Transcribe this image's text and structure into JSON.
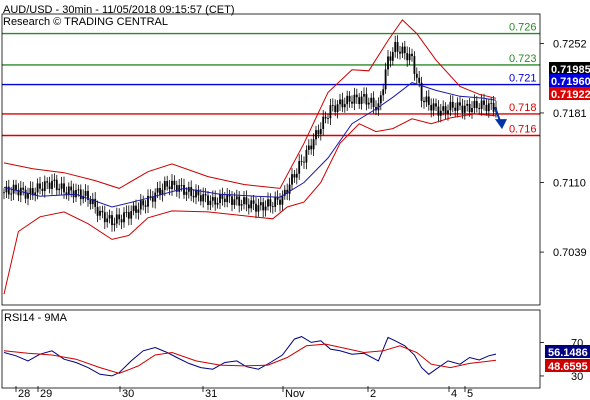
{
  "header": {
    "title": "AUD/USD - 30min - 11/05/2018 09:15:57 (CET)",
    "source": "Research © TRADING CENTRAL"
  },
  "colors": {
    "candle": "#000000",
    "bollinger": "#cc0000",
    "moving_average": "#1a1aa6",
    "support": "#dd0000",
    "resistance": "#2a8a2a",
    "pivot": "#0000dd",
    "rsi": "#000080",
    "rsi_ma": "#cc0000",
    "arrow": "#0033aa"
  },
  "chart_data": [
    {
      "type": "candlestick",
      "title": "AUD/USD - 30min - 11/05/2018 09:15:57 (CET)",
      "y_ticks": [
        "0.7252",
        "0.7181",
        "0.7110",
        "0.7039"
      ],
      "ylim": [
        0.6985,
        0.7282
      ],
      "x_ticks": [
        "28",
        "29",
        "30",
        "31",
        "Nov",
        "2",
        "4",
        "5"
      ],
      "levels": [
        {
          "label": "0.726",
          "value": 0.7262,
          "kind": "resistance"
        },
        {
          "label": "0.723",
          "value": 0.723,
          "kind": "resistance"
        },
        {
          "label": "0.721",
          "value": 0.721,
          "kind": "pivot"
        },
        {
          "label": "0.718",
          "value": 0.718,
          "kind": "support"
        },
        {
          "label": "0.716",
          "value": 0.7158,
          "kind": "support"
        }
      ],
      "price_tags": [
        {
          "label": "0.71985",
          "value": 0.71985,
          "color": "#000000"
        },
        {
          "label": "0.71960",
          "value": 0.7196,
          "color": "#0000dd"
        },
        {
          "label": "0.71922",
          "value": 0.71922,
          "color": "#dd0000"
        }
      ],
      "close_path": [
        [
          0,
          0.71
        ],
        [
          5,
          0.7103
        ],
        [
          10,
          0.7098
        ],
        [
          15,
          0.7105
        ],
        [
          20,
          0.711
        ],
        [
          25,
          0.7102
        ],
        [
          30,
          0.71
        ],
        [
          35,
          0.7095
        ],
        [
          40,
          0.7078
        ],
        [
          45,
          0.707
        ],
        [
          48,
          0.7073
        ],
        [
          53,
          0.708
        ],
        [
          58,
          0.7088
        ],
        [
          63,
          0.7098
        ],
        [
          68,
          0.7108
        ],
        [
          72,
          0.7106
        ],
        [
          77,
          0.71
        ],
        [
          82,
          0.7096
        ],
        [
          87,
          0.709
        ],
        [
          92,
          0.7095
        ],
        [
          97,
          0.7091
        ],
        [
          101,
          0.7089
        ],
        [
          106,
          0.7085
        ],
        [
          111,
          0.7088
        ],
        [
          116,
          0.7094
        ],
        [
          121,
          0.7118
        ],
        [
          126,
          0.714
        ],
        [
          131,
          0.7163
        ],
        [
          136,
          0.7185
        ],
        [
          140,
          0.719
        ],
        [
          145,
          0.7195
        ],
        [
          150,
          0.7196
        ],
        [
          156,
          0.7186
        ],
        [
          160,
          0.7235
        ],
        [
          163,
          0.7248
        ],
        [
          167,
          0.7242
        ],
        [
          170,
          0.7236
        ],
        [
          174,
          0.7197
        ],
        [
          177,
          0.719
        ],
        [
          182,
          0.7182
        ],
        [
          187,
          0.7188
        ],
        [
          193,
          0.7186
        ],
        [
          198,
          0.7189
        ],
        [
          202,
          0.7188
        ],
        [
          205,
          0.7187
        ]
      ],
      "bollinger_upper": [
        [
          0,
          0.713
        ],
        [
          12,
          0.7124
        ],
        [
          25,
          0.712
        ],
        [
          38,
          0.7112
        ],
        [
          48,
          0.7104
        ],
        [
          60,
          0.7121
        ],
        [
          70,
          0.7129
        ],
        [
          85,
          0.7116
        ],
        [
          100,
          0.7108
        ],
        [
          115,
          0.7104
        ],
        [
          125,
          0.715
        ],
        [
          135,
          0.7202
        ],
        [
          145,
          0.7225
        ],
        [
          152,
          0.7224
        ],
        [
          160,
          0.7255
        ],
        [
          166,
          0.7276
        ],
        [
          172,
          0.7262
        ],
        [
          180,
          0.7235
        ],
        [
          190,
          0.7208
        ],
        [
          198,
          0.72
        ],
        [
          205,
          0.7196
        ]
      ],
      "bollinger_lower": [
        [
          0,
          0.6996
        ],
        [
          6,
          0.706
        ],
        [
          15,
          0.7075
        ],
        [
          25,
          0.708
        ],
        [
          35,
          0.7068
        ],
        [
          45,
          0.7052
        ],
        [
          52,
          0.7056
        ],
        [
          60,
          0.7074
        ],
        [
          70,
          0.7081
        ],
        [
          85,
          0.708
        ],
        [
          100,
          0.7076
        ],
        [
          112,
          0.7073
        ],
        [
          118,
          0.7085
        ],
        [
          125,
          0.709
        ],
        [
          132,
          0.711
        ],
        [
          140,
          0.715
        ],
        [
          148,
          0.717
        ],
        [
          155,
          0.7162
        ],
        [
          162,
          0.7165
        ],
        [
          170,
          0.7175
        ],
        [
          178,
          0.717
        ],
        [
          186,
          0.7176
        ],
        [
          196,
          0.718
        ],
        [
          205,
          0.7178
        ]
      ],
      "moving_average": [
        [
          0,
          0.7105
        ],
        [
          15,
          0.7096
        ],
        [
          30,
          0.7098
        ],
        [
          45,
          0.7085
        ],
        [
          60,
          0.7094
        ],
        [
          75,
          0.7104
        ],
        [
          90,
          0.7098
        ],
        [
          105,
          0.7096
        ],
        [
          115,
          0.7095
        ],
        [
          125,
          0.711
        ],
        [
          135,
          0.7135
        ],
        [
          145,
          0.717
        ],
        [
          155,
          0.7185
        ],
        [
          162,
          0.7197
        ],
        [
          170,
          0.7212
        ],
        [
          180,
          0.7204
        ],
        [
          190,
          0.7198
        ],
        [
          200,
          0.7196
        ],
        [
          205,
          0.7194
        ]
      ]
    },
    {
      "type": "line",
      "title": "RSI14 - 9MA",
      "y_ticks": [
        "70",
        "30"
      ],
      "ylim": [
        18,
        92
      ],
      "series": [
        {
          "name": "RSI14",
          "color": "#000080",
          "last_value": "56.1486",
          "values": [
            [
              0,
              58
            ],
            [
              5,
              54
            ],
            [
              10,
              48
            ],
            [
              15,
              56
            ],
            [
              20,
              60
            ],
            [
              25,
              50
            ],
            [
              30,
              46
            ],
            [
              35,
              40
            ],
            [
              40,
              32
            ],
            [
              45,
              30
            ],
            [
              48,
              34
            ],
            [
              53,
              48
            ],
            [
              58,
              60
            ],
            [
              63,
              64
            ],
            [
              68,
              58
            ],
            [
              72,
              52
            ],
            [
              77,
              45
            ],
            [
              82,
              40
            ],
            [
              87,
              38
            ],
            [
              92,
              46
            ],
            [
              97,
              48
            ],
            [
              101,
              41
            ],
            [
              106,
              38
            ],
            [
              111,
              46
            ],
            [
              116,
              55
            ],
            [
              121,
              74
            ],
            [
              124,
              77
            ],
            [
              128,
              70
            ],
            [
              132,
              72
            ],
            [
              136,
              62
            ],
            [
              140,
              60
            ],
            [
              145,
              56
            ],
            [
              150,
              57
            ],
            [
              156,
              48
            ],
            [
              160,
              76
            ],
            [
              163,
              72
            ],
            [
              167,
              66
            ],
            [
              171,
              55
            ],
            [
              174,
              40
            ],
            [
              177,
              32
            ],
            [
              180,
              38
            ],
            [
              185,
              48
            ],
            [
              190,
              44
            ],
            [
              194,
              52
            ],
            [
              198,
              49
            ],
            [
              202,
              54
            ],
            [
              205,
              56.1
            ]
          ]
        },
        {
          "name": "9MA",
          "color": "#cc0000",
          "last_value": "48.6595",
          "values": [
            [
              0,
              60
            ],
            [
              10,
              57
            ],
            [
              20,
              55
            ],
            [
              30,
              50
            ],
            [
              40,
              40
            ],
            [
              48,
              33
            ],
            [
              56,
              42
            ],
            [
              63,
              55
            ],
            [
              70,
              58
            ],
            [
              80,
              48
            ],
            [
              90,
              43
            ],
            [
              100,
              42
            ],
            [
              110,
              43
            ],
            [
              118,
              52
            ],
            [
              126,
              66
            ],
            [
              134,
              68
            ],
            [
              142,
              63
            ],
            [
              150,
              58
            ],
            [
              158,
              60
            ],
            [
              165,
              66
            ],
            [
              172,
              58
            ],
            [
              178,
              44
            ],
            [
              186,
              40
            ],
            [
              194,
              45
            ],
            [
              200,
              47
            ],
            [
              205,
              48.7
            ]
          ]
        }
      ]
    }
  ]
}
